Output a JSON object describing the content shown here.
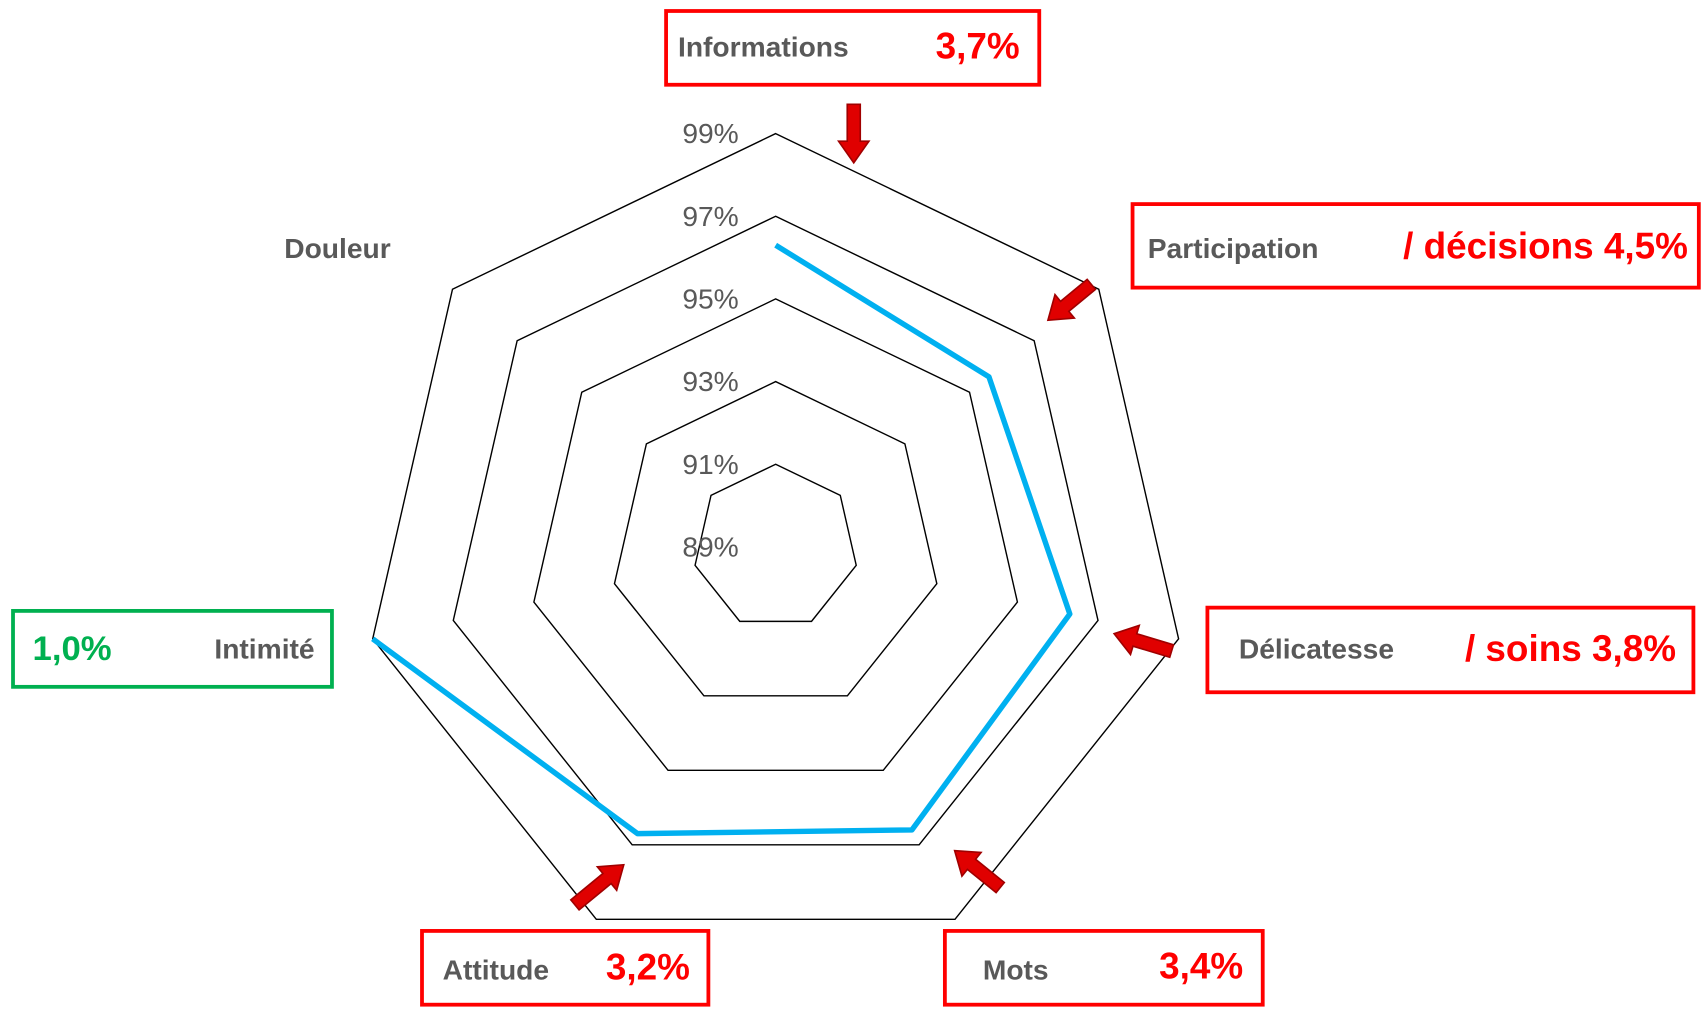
{
  "chart_data": {
    "type": "radar",
    "categories": [
      "Informations",
      "Participation",
      "Délicatesse",
      "Mots",
      "Attitude",
      "Intimité",
      "Douleur"
    ],
    "values": [
      96.3,
      95.6,
      96.3,
      96.6,
      96.7,
      99,
      null
    ],
    "color": "#00b0f0",
    "ylim": [
      89,
      99
    ],
    "yticks": [
      {
        "value": 89,
        "label": "89%"
      },
      {
        "value": 91,
        "label": "91%"
      },
      {
        "value": 93,
        "label": "93%"
      },
      {
        "value": 95,
        "label": "95%"
      },
      {
        "value": 97,
        "label": "97%"
      },
      {
        "value": 99,
        "label": "99%"
      }
    ],
    "grid": true,
    "annotations": [
      "3,7%",
      "/ décisions 4,5%",
      "/ soins 3,8%",
      "3,4%",
      "3,2%",
      "1,0%",
      null
    ],
    "annotation_colors": [
      "#ff0000",
      "#ff0000",
      "#ff0000",
      "#ff0000",
      "#ff0000",
      "#00b050",
      null
    ]
  }
}
